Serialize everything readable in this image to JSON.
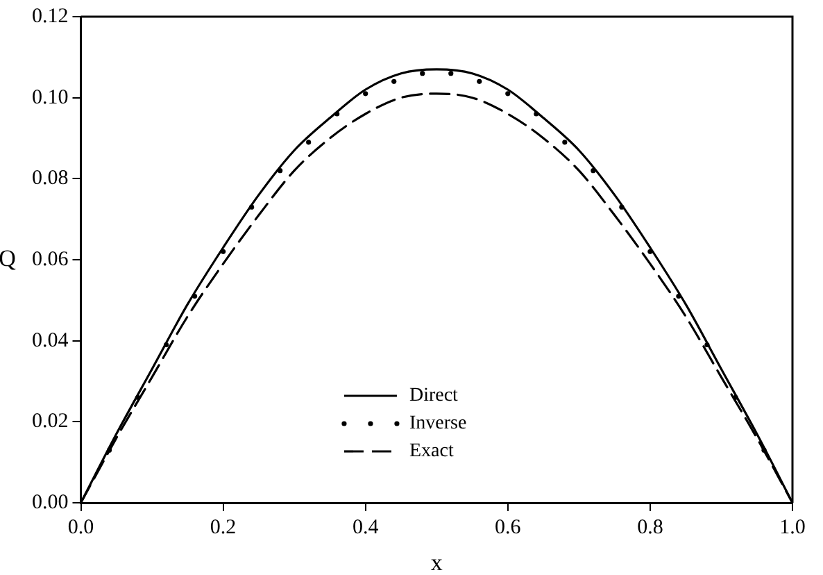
{
  "chart_data": {
    "type": "line",
    "xlabel": "x",
    "ylabel": "Q",
    "xlim": [
      0,
      1
    ],
    "ylim": [
      0,
      0.12
    ],
    "xticks": [
      {
        "value": 0,
        "label": "0.0"
      },
      {
        "value": 0.2,
        "label": "0.2"
      },
      {
        "value": 0.4,
        "label": "0.4"
      },
      {
        "value": 0.6,
        "label": "0.6"
      },
      {
        "value": 0.8,
        "label": "0.8"
      },
      {
        "value": 1,
        "label": "1.0"
      }
    ],
    "yticks": [
      {
        "value": 0,
        "label": "0.00"
      },
      {
        "value": 0.02,
        "label": "0.02"
      },
      {
        "value": 0.04,
        "label": "0.04"
      },
      {
        "value": 0.06,
        "label": "0.06"
      },
      {
        "value": 0.08,
        "label": "0.08"
      },
      {
        "value": 0.1,
        "label": "0.10"
      },
      {
        "value": 0.12,
        "label": "0.12"
      }
    ],
    "grid": false,
    "legend": "bottom",
    "series": [
      {
        "name": "Direct",
        "color": "#000000",
        "line_style": "solid",
        "marker": "none",
        "x": [
          0,
          0.05,
          0.1,
          0.15,
          0.2,
          0.25,
          0.3,
          0.35,
          0.4,
          0.45,
          0.5,
          0.55,
          0.6,
          0.65,
          0.7,
          0.75,
          0.8,
          0.85,
          0.9,
          0.95,
          1
        ],
        "values": [
          0,
          0.017,
          0.033,
          0.049,
          0.063,
          0.076,
          0.087,
          0.095,
          0.102,
          0.106,
          0.107,
          0.106,
          0.102,
          0.095,
          0.087,
          0.076,
          0.063,
          0.049,
          0.033,
          0.017,
          0
        ]
      },
      {
        "name": "Inverse",
        "type": "scatter",
        "color": "#000000",
        "marker": "circle",
        "x": [
          0.04,
          0.08,
          0.12,
          0.16,
          0.2,
          0.24,
          0.28,
          0.32,
          0.36,
          0.4,
          0.44,
          0.48,
          0.52,
          0.56,
          0.6,
          0.64,
          0.68,
          0.72,
          0.76,
          0.8,
          0.84,
          0.88,
          0.92,
          0.96
        ],
        "values": [
          0.013,
          0.026,
          0.039,
          0.051,
          0.062,
          0.073,
          0.082,
          0.089,
          0.096,
          0.101,
          0.104,
          0.106,
          0.106,
          0.104,
          0.101,
          0.096,
          0.089,
          0.082,
          0.073,
          0.062,
          0.051,
          0.039,
          0.026,
          0.013
        ]
      },
      {
        "name": "Exact",
        "color": "#000000",
        "line_style": "dashed",
        "marker": "none",
        "x": [
          0,
          0.05,
          0.1,
          0.15,
          0.2,
          0.25,
          0.3,
          0.35,
          0.4,
          0.45,
          0.5,
          0.55,
          0.6,
          0.65,
          0.7,
          0.75,
          0.8,
          0.85,
          0.9,
          0.95,
          1
        ],
        "values": [
          0,
          0.016,
          0.031,
          0.046,
          0.059,
          0.071,
          0.082,
          0.09,
          0.096,
          0.1,
          0.101,
          0.1,
          0.096,
          0.09,
          0.082,
          0.071,
          0.059,
          0.046,
          0.031,
          0.016,
          0
        ]
      }
    ]
  }
}
